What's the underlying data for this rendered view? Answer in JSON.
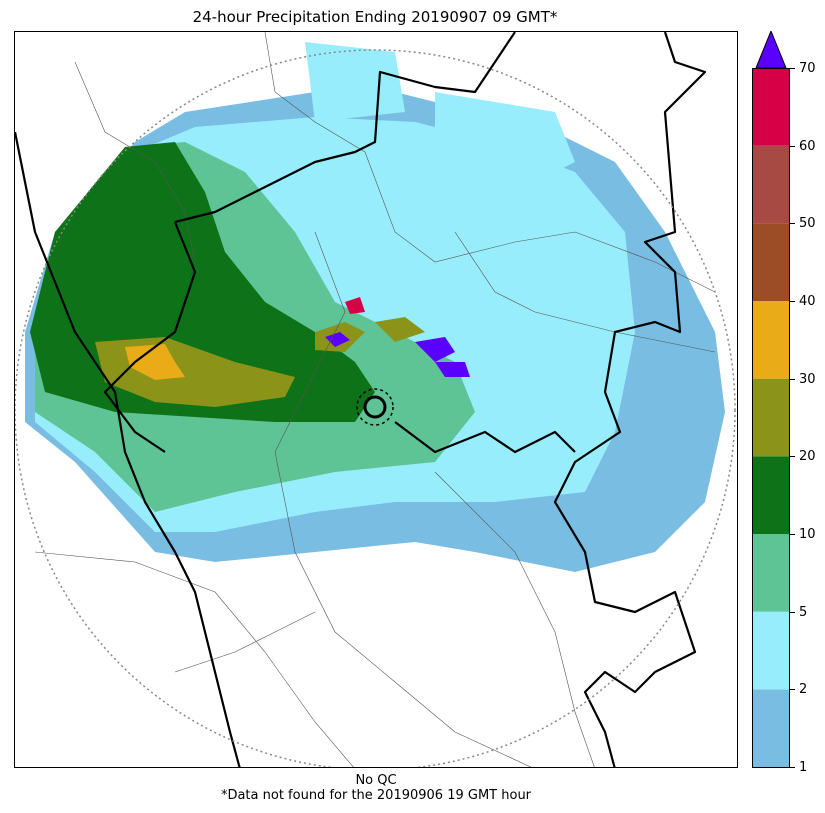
{
  "title": "24-hour Precipitation Ending 20190907 09 GMT*",
  "footer": {
    "qc_note": "No QC",
    "missing_note": "*Data not found for the 20190906 19 GMT hour"
  },
  "colorbar": {
    "ticks": [
      "1",
      "2",
      "5",
      "10",
      "20",
      "30",
      "40",
      "50",
      "60",
      "70"
    ],
    "bands": [
      {
        "from": "1",
        "to": "2",
        "color": "#79bde3"
      },
      {
        "from": "2",
        "to": "5",
        "color": "#98edfc"
      },
      {
        "from": "5",
        "to": "10",
        "color": "#5ec496"
      },
      {
        "from": "10",
        "to": "20",
        "color": "#0e7318"
      },
      {
        "from": "20",
        "to": "30",
        "color": "#8b9418"
      },
      {
        "from": "30",
        "to": "40",
        "color": "#e9ab17"
      },
      {
        "from": "40",
        "to": "50",
        "color": "#9c4d25"
      },
      {
        "from": "50",
        "to": "60",
        "color": "#a64a43"
      },
      {
        "from": "60",
        "to": "70",
        "color": "#d50046"
      }
    ],
    "over_color": "#5a00ff"
  },
  "map": {
    "range_ring_color": "#888888",
    "state_border_color": "#000000",
    "district_border_color": "#555555"
  }
}
